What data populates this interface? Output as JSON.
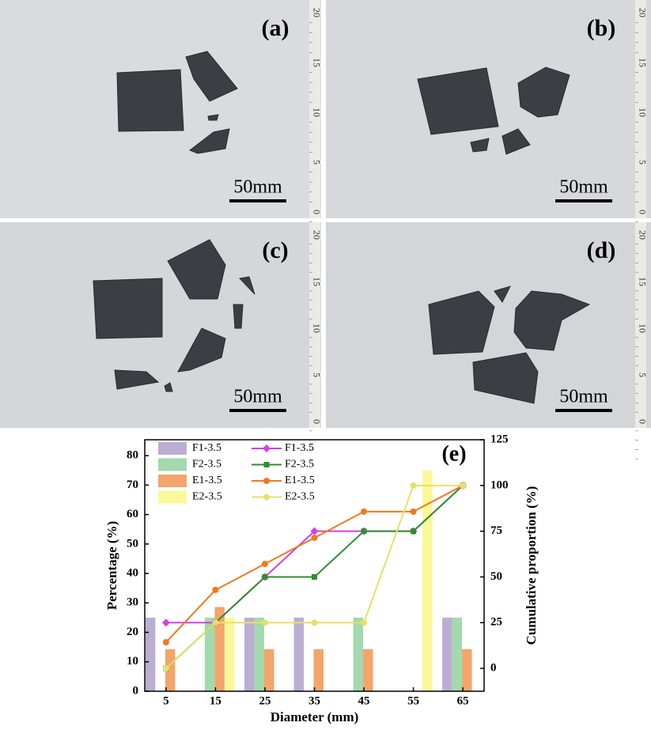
{
  "photos": [
    {
      "label": "(a)",
      "scale": "50mm",
      "ruler": [
        20,
        15,
        10,
        5,
        0
      ]
    },
    {
      "label": "(b)",
      "scale": "50mm",
      "ruler": [
        20,
        15,
        10,
        5,
        0
      ]
    },
    {
      "label": "(c)",
      "scale": "50mm",
      "ruler": [
        20,
        15,
        10,
        5,
        0
      ]
    },
    {
      "label": "(d)",
      "scale": "50mm",
      "ruler": [
        20,
        15,
        10,
        5,
        0
      ]
    }
  ],
  "chart_data": {
    "type": "combo",
    "title": "(e)",
    "x_label": "Diameter (mm)",
    "y_label": "Percentage (%)",
    "y2_label": "Cumulative proportion (%)",
    "x": [
      5,
      15,
      25,
      35,
      45,
      55,
      65
    ],
    "xlim": [
      0.7,
      69.3
    ],
    "xticks": [
      5,
      15,
      25,
      35,
      45,
      55,
      65
    ],
    "ylim": [
      0,
      85.4
    ],
    "yticks": [
      0,
      10,
      20,
      30,
      40,
      50,
      60,
      70,
      80
    ],
    "y2lim": [
      -12.5,
      125
    ],
    "y2ticks": [
      0,
      25,
      50,
      75,
      100,
      125
    ],
    "legend": "upper left",
    "series": [
      {
        "name": "F1-3.5",
        "type": "bar",
        "color": "#bcaed3",
        "values": [
          25,
          0,
          25,
          25,
          0,
          0,
          25
        ]
      },
      {
        "name": "F2-3.5",
        "type": "bar",
        "color": "#a3d9ac",
        "values": [
          0,
          25,
          25,
          0,
          25,
          0,
          25
        ]
      },
      {
        "name": "E1-3.5",
        "type": "bar",
        "color": "#f3a56c",
        "values": [
          14.3,
          28.6,
          14.3,
          14.3,
          14.3,
          0,
          14.3
        ]
      },
      {
        "name": "E2-3.5",
        "type": "bar",
        "color": "#fbf89a",
        "values": [
          0,
          25,
          0,
          0,
          0,
          75,
          0
        ]
      },
      {
        "name": "F1-3.5",
        "type": "line",
        "axis": "y2",
        "marker": "diamond",
        "color": "#d63ee8",
        "values": [
          25,
          25,
          50,
          75,
          75,
          75,
          100
        ]
      },
      {
        "name": "F2-3.5",
        "type": "line",
        "axis": "y2",
        "marker": "square",
        "color": "#2f8f2f",
        "values": [
          0,
          25,
          50,
          50,
          75,
          75,
          100
        ]
      },
      {
        "name": "E1-3.5",
        "type": "line",
        "axis": "y2",
        "marker": "circle",
        "color": "#ee7a1c",
        "values": [
          14.3,
          42.9,
          57.1,
          71.4,
          85.7,
          85.7,
          100
        ]
      },
      {
        "name": "E2-3.5",
        "type": "line",
        "axis": "y2",
        "marker": "circle",
        "color": "#e6e06a",
        "values": [
          0,
          25,
          25,
          25,
          25,
          100,
          100
        ]
      }
    ]
  }
}
